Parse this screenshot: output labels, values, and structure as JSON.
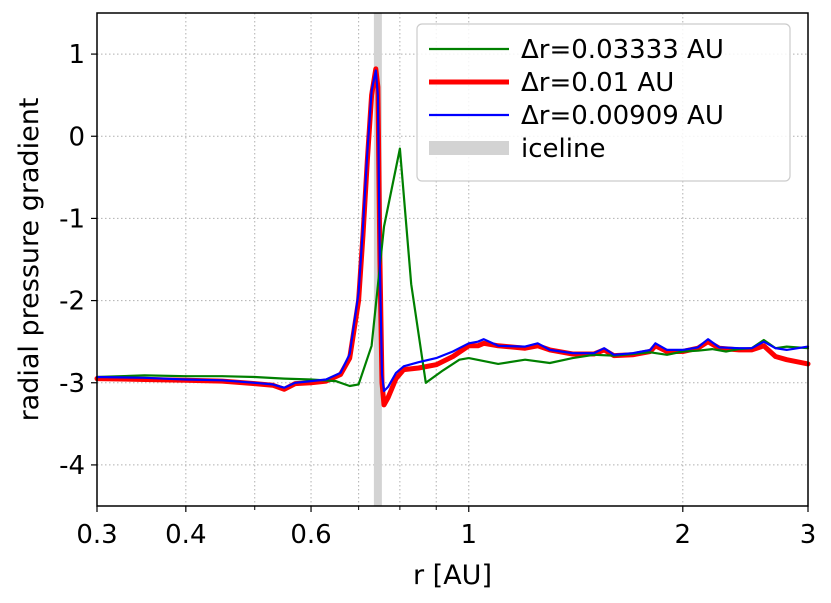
{
  "chart_data": {
    "type": "line",
    "xlabel": "r [AU]",
    "ylabel": "radial pressure gradient",
    "xscale": "log",
    "xlim": [
      0.3,
      3
    ],
    "ylim": [
      -4.5,
      1.5
    ],
    "xticks": [
      {
        "value": 0.3,
        "label": "0.3"
      },
      {
        "value": 0.4,
        "label": "0.4"
      },
      {
        "value": 0.6,
        "label": "0.6"
      },
      {
        "value": 1,
        "label": "1"
      },
      {
        "value": 2,
        "label": "2"
      },
      {
        "value": 3,
        "label": "3"
      }
    ],
    "yticks": [
      {
        "value": 1,
        "label": "1"
      },
      {
        "value": 0,
        "label": "0"
      },
      {
        "value": -1,
        "label": "-1"
      },
      {
        "value": -2,
        "label": "-2"
      },
      {
        "value": -3,
        "label": "-3"
      },
      {
        "value": -4,
        "label": "-4"
      }
    ],
    "grid": true,
    "legend_position": "top-right",
    "iceline": {
      "name": "iceline",
      "x": 0.745,
      "color": "#d3d3d3"
    },
    "series": [
      {
        "name": "Δr=0.03333 AU",
        "color": "#008000",
        "x": [
          0.3,
          0.35,
          0.4,
          0.45,
          0.5,
          0.55,
          0.6,
          0.65,
          0.68,
          0.7,
          0.73,
          0.76,
          0.8,
          0.83,
          0.87,
          0.92,
          0.97,
          1.0,
          1.1,
          1.2,
          1.3,
          1.4,
          1.5,
          1.6,
          1.7,
          1.8,
          1.9,
          2.0,
          2.1,
          2.2,
          2.3,
          2.4,
          2.5,
          2.6,
          2.7,
          2.8,
          3.0
        ],
        "y": [
          -2.93,
          -2.91,
          -2.92,
          -2.92,
          -2.93,
          -2.95,
          -2.96,
          -2.98,
          -3.04,
          -3.02,
          -2.55,
          -1.1,
          -0.15,
          -1.8,
          -3.0,
          -2.85,
          -2.72,
          -2.7,
          -2.77,
          -2.72,
          -2.76,
          -2.7,
          -2.66,
          -2.67,
          -2.65,
          -2.63,
          -2.66,
          -2.62,
          -2.61,
          -2.59,
          -2.62,
          -2.59,
          -2.58,
          -2.48,
          -2.58,
          -2.56,
          -2.58
        ]
      },
      {
        "name": "Δr=0.01 AU",
        "color": "#ff0000",
        "x": [
          0.3,
          0.35,
          0.4,
          0.45,
          0.5,
          0.53,
          0.55,
          0.57,
          0.6,
          0.63,
          0.66,
          0.68,
          0.7,
          0.71,
          0.72,
          0.73,
          0.74,
          0.745,
          0.75,
          0.755,
          0.76,
          0.77,
          0.79,
          0.81,
          0.85,
          0.9,
          0.95,
          1.0,
          1.03,
          1.05,
          1.1,
          1.2,
          1.25,
          1.3,
          1.4,
          1.5,
          1.55,
          1.6,
          1.7,
          1.8,
          1.83,
          1.9,
          2.0,
          2.1,
          2.17,
          2.25,
          2.4,
          2.5,
          2.6,
          2.7,
          2.8,
          3.0
        ],
        "y": [
          -2.95,
          -2.96,
          -2.97,
          -2.98,
          -3.01,
          -3.03,
          -3.08,
          -3.01,
          -3.0,
          -2.98,
          -2.9,
          -2.7,
          -2.0,
          -1.2,
          -0.3,
          0.5,
          0.82,
          0.6,
          -1.5,
          -3.0,
          -3.27,
          -3.18,
          -2.95,
          -2.84,
          -2.82,
          -2.78,
          -2.68,
          -2.55,
          -2.55,
          -2.52,
          -2.55,
          -2.58,
          -2.55,
          -2.6,
          -2.65,
          -2.65,
          -2.6,
          -2.67,
          -2.66,
          -2.62,
          -2.55,
          -2.62,
          -2.62,
          -2.58,
          -2.5,
          -2.58,
          -2.6,
          -2.6,
          -2.55,
          -2.68,
          -2.72,
          -2.77
        ]
      },
      {
        "name": "Δr=0.00909 AU",
        "color": "#0000ff",
        "x": [
          0.3,
          0.35,
          0.4,
          0.45,
          0.5,
          0.53,
          0.55,
          0.57,
          0.6,
          0.63,
          0.66,
          0.68,
          0.7,
          0.71,
          0.72,
          0.73,
          0.74,
          0.745,
          0.75,
          0.755,
          0.76,
          0.77,
          0.79,
          0.81,
          0.85,
          0.9,
          0.95,
          1.0,
          1.03,
          1.05,
          1.1,
          1.2,
          1.25,
          1.3,
          1.4,
          1.5,
          1.55,
          1.6,
          1.7,
          1.8,
          1.83,
          1.9,
          2.0,
          2.1,
          2.17,
          2.25,
          2.4,
          2.5,
          2.6,
          2.7,
          2.8,
          3.0
        ],
        "y": [
          -2.93,
          -2.94,
          -2.96,
          -2.97,
          -3.0,
          -3.02,
          -3.06,
          -3.0,
          -2.98,
          -2.96,
          -2.88,
          -2.65,
          -1.9,
          -1.1,
          -0.2,
          0.55,
          0.8,
          0.5,
          -1.6,
          -2.9,
          -3.1,
          -3.05,
          -2.88,
          -2.8,
          -2.75,
          -2.7,
          -2.62,
          -2.52,
          -2.5,
          -2.47,
          -2.55,
          -2.56,
          -2.52,
          -2.6,
          -2.64,
          -2.64,
          -2.58,
          -2.66,
          -2.64,
          -2.6,
          -2.52,
          -2.6,
          -2.6,
          -2.57,
          -2.47,
          -2.57,
          -2.58,
          -2.58,
          -2.5,
          -2.58,
          -2.6,
          -2.56
        ]
      }
    ]
  }
}
